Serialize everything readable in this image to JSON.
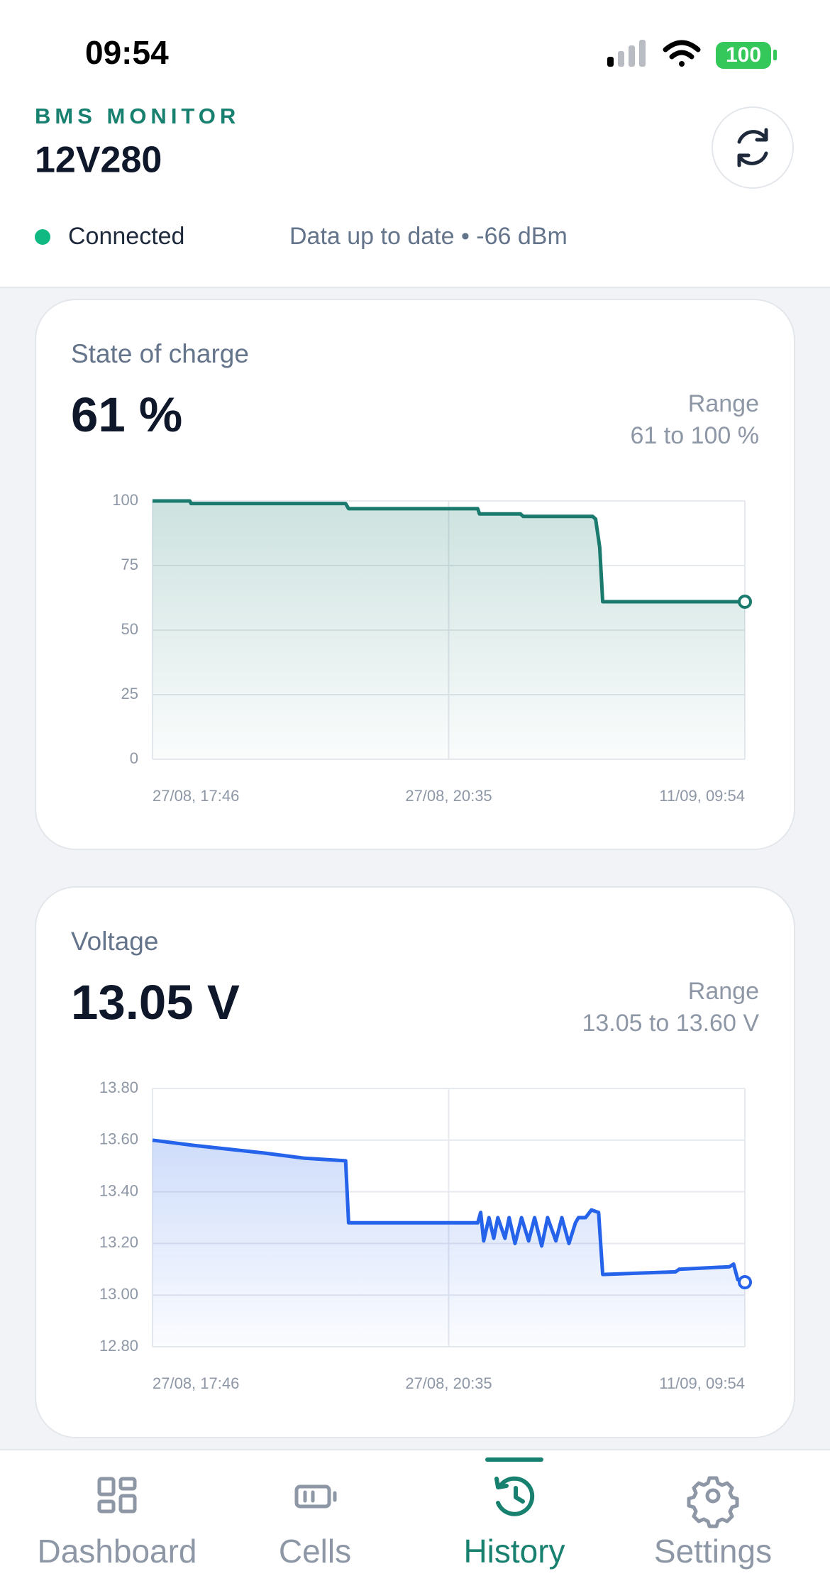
{
  "status_bar": {
    "time": "09:54",
    "battery": "100"
  },
  "header": {
    "app_label": "BMS MONITOR",
    "device": "12V280",
    "connection": "Connected",
    "status": "Data up to date • -66 dBm"
  },
  "chart_data": [
    {
      "type": "line",
      "title": "State of charge",
      "current": "61 %",
      "range_label": "Range",
      "range": "61 to 100 %",
      "color": "#1a7a6e",
      "grid": true,
      "end_marker": true,
      "x": [
        0,
        6.3,
        6.5,
        32.6,
        33.1,
        54.9,
        55.2,
        62.1,
        62.6,
        74.3,
        74.8,
        75.5,
        76,
        100
      ],
      "values": [
        100,
        100,
        99,
        99,
        97,
        97,
        95,
        95,
        94,
        94,
        93,
        82,
        61,
        61
      ],
      "xlim": [
        0,
        100
      ],
      "xticks": [
        {
          "value": 0,
          "label": "27/08, 17:46"
        },
        {
          "value": 50,
          "label": "27/08, 20:35"
        },
        {
          "value": 100,
          "label": "11/09, 09:54"
        }
      ],
      "ylim": [
        0,
        100
      ],
      "yticks": [
        0,
        25,
        50,
        75,
        100
      ]
    },
    {
      "type": "line",
      "title": "Voltage",
      "current": "13.05 V",
      "range_label": "Range",
      "range": "13.05 to 13.60 V",
      "color": "#2563eb",
      "grid": true,
      "end_marker": true,
      "x": [
        0,
        6.9,
        18.9,
        25.7,
        32.6,
        33.1,
        42.9,
        54.9,
        55.4,
        55.9,
        56.8,
        57.6,
        58.3,
        59.5,
        60.2,
        61.2,
        62.3,
        63.5,
        64.5,
        65.7,
        66.7,
        68.1,
        69.1,
        70.3,
        71.4,
        71.9,
        73.1,
        74.1,
        75.3,
        76,
        88.3,
        88.9,
        97.4,
        98.1,
        98.8,
        100
      ],
      "values": [
        13.6,
        13.58,
        13.55,
        13.53,
        13.52,
        13.28,
        13.28,
        13.28,
        13.32,
        13.21,
        13.3,
        13.22,
        13.3,
        13.22,
        13.3,
        13.2,
        13.3,
        13.21,
        13.3,
        13.19,
        13.3,
        13.21,
        13.3,
        13.2,
        13.28,
        13.3,
        13.3,
        13.33,
        13.32,
        13.08,
        13.09,
        13.1,
        13.11,
        13.12,
        13.06,
        13.05
      ],
      "xlim": [
        0,
        100
      ],
      "xticks": [
        {
          "value": 0,
          "label": "27/08, 17:46"
        },
        {
          "value": 50,
          "label": "27/08, 20:35"
        },
        {
          "value": 100,
          "label": "11/09, 09:54"
        }
      ],
      "ylim": [
        12.8,
        13.8
      ],
      "yticks": [
        {
          "value": 12.8,
          "label": "12.80"
        },
        {
          "value": 13,
          "label": "13.00"
        },
        {
          "value": 13.2,
          "label": "13.20"
        },
        {
          "value": 13.4,
          "label": "13.40"
        },
        {
          "value": 13.6,
          "label": "13.60"
        },
        {
          "value": 13.8,
          "label": "13.80"
        }
      ]
    }
  ],
  "nav": {
    "items": [
      "Dashboard",
      "Cells",
      "History",
      "Settings"
    ],
    "active": 2
  }
}
